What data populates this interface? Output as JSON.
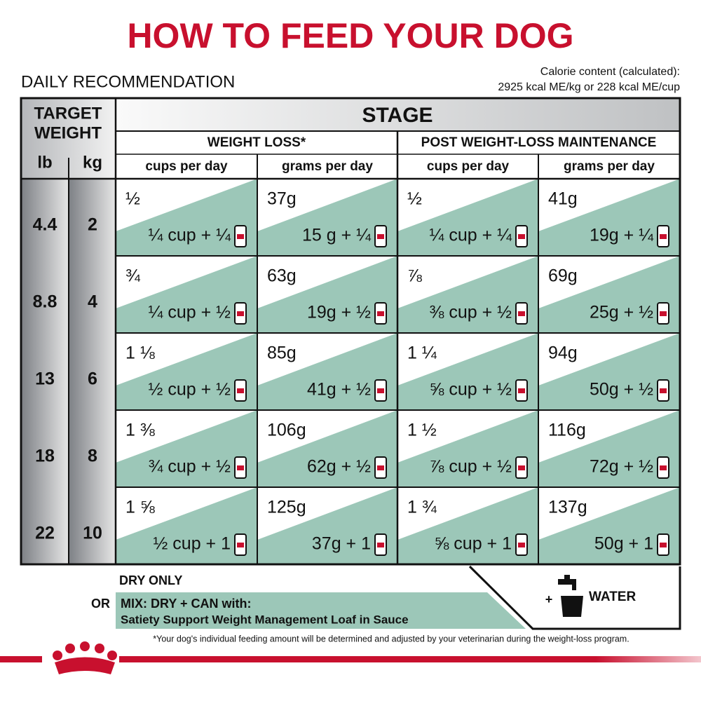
{
  "header": {
    "title": "HOW TO FEED YOUR DOG",
    "subtitle": "DAILY RECOMMENDATION",
    "calorie_label": "Calorie content (calculated):",
    "calorie_value": "2925 kcal ME/kg or 228 kcal ME/cup"
  },
  "table": {
    "target_weight": [
      "TARGET",
      "WEIGHT"
    ],
    "lb": "lb",
    "kg": "kg",
    "stage": "STAGE",
    "groups": [
      "WEIGHT LOSS*",
      "POST WEIGHT-LOSS MAINTENANCE"
    ],
    "columns": [
      "cups per day",
      "grams per day",
      "cups per day",
      "grams per day"
    ],
    "rows": [
      {
        "lb": "4.4",
        "kg": "2",
        "cells": [
          {
            "dry": "½",
            "mix": "¼ cup + ¼"
          },
          {
            "dry": "37g",
            "mix": "15 g + ¼"
          },
          {
            "dry": "½",
            "mix": "¼ cup + ¼"
          },
          {
            "dry": "41g",
            "mix": "19g + ¼"
          }
        ]
      },
      {
        "lb": "8.8",
        "kg": "4",
        "cells": [
          {
            "dry": "¾",
            "mix": "¼ cup + ½"
          },
          {
            "dry": "63g",
            "mix": "19g + ½"
          },
          {
            "dry": "⅞",
            "mix": "⅜ cup + ½"
          },
          {
            "dry": "69g",
            "mix": "25g + ½"
          }
        ]
      },
      {
        "lb": "13",
        "kg": "6",
        "cells": [
          {
            "dry": "1 ⅛",
            "mix": "½ cup + ½"
          },
          {
            "dry": "85g",
            "mix": "41g + ½"
          },
          {
            "dry": "1 ¼",
            "mix": "⅝ cup + ½"
          },
          {
            "dry": "94g",
            "mix": "50g + ½"
          }
        ]
      },
      {
        "lb": "18",
        "kg": "8",
        "cells": [
          {
            "dry": "1 ⅜",
            "mix": "¾ cup + ½"
          },
          {
            "dry": "106g",
            "mix": "62g + ½"
          },
          {
            "dry": "1 ½",
            "mix": "⅞ cup + ½"
          },
          {
            "dry": "116g",
            "mix": "72g + ½"
          }
        ]
      },
      {
        "lb": "22",
        "kg": "10",
        "cells": [
          {
            "dry": "1 ⅝",
            "mix": "½ cup + 1"
          },
          {
            "dry": "125g",
            "mix": "37g + 1"
          },
          {
            "dry": "1 ¾",
            "mix": "⅝ cup + 1"
          },
          {
            "dry": "137g",
            "mix": "50g + 1"
          }
        ]
      }
    ]
  },
  "footer": {
    "dry_only": "DRY ONLY",
    "or": "OR",
    "mix": "MIX: DRY + CAN with:",
    "product": "Satiety Support Weight Management Loaf in Sauce",
    "plus": "+",
    "water": "WATER",
    "footnote": "*Your dog's individual feeding amount will be determined and adjusted by your veterinarian during the weight-loss program."
  }
}
